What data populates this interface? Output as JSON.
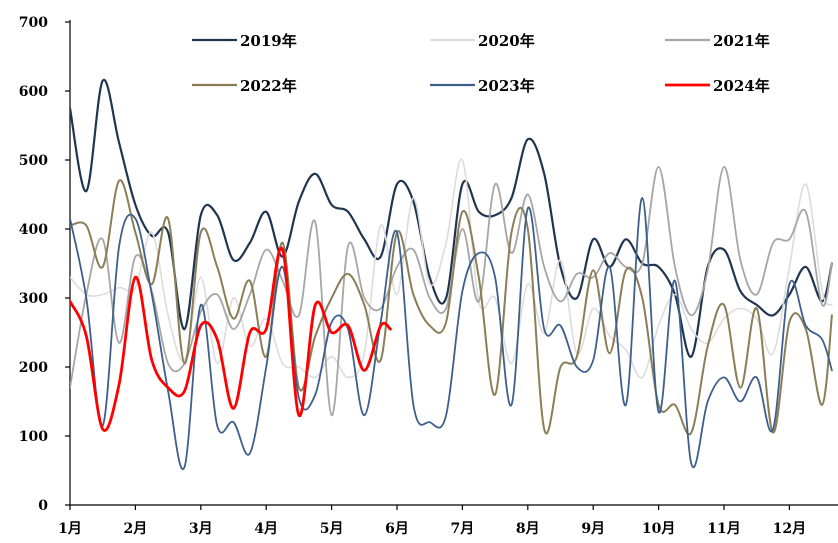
{
  "chart_data": {
    "type": "line",
    "y_ticks": [
      0,
      100,
      200,
      300,
      400,
      500,
      600,
      700
    ],
    "ylim": [
      0,
      700
    ],
    "x_ticks": [
      "1月",
      "2月",
      "3月",
      "4月",
      "5月",
      "6月",
      "7月",
      "8月",
      "9月",
      "10月",
      "11月",
      "12月"
    ],
    "xlim": [
      1,
      12.65
    ],
    "grid": false,
    "legend_position": "top",
    "series": [
      {
        "name": "2019年",
        "color": "#1f3550",
        "width": 2.2,
        "points": [
          [
            1.0,
            575
          ],
          [
            1.25,
            455
          ],
          [
            1.5,
            615
          ],
          [
            1.75,
            525
          ],
          [
            2.0,
            435
          ],
          [
            2.25,
            390
          ],
          [
            2.5,
            395
          ],
          [
            2.75,
            255
          ],
          [
            3.0,
            420
          ],
          [
            3.25,
            420
          ],
          [
            3.5,
            355
          ],
          [
            3.75,
            380
          ],
          [
            4.0,
            425
          ],
          [
            4.25,
            360
          ],
          [
            4.5,
            440
          ],
          [
            4.75,
            480
          ],
          [
            5.0,
            435
          ],
          [
            5.25,
            425
          ],
          [
            5.5,
            385
          ],
          [
            5.75,
            360
          ],
          [
            6.0,
            465
          ],
          [
            6.25,
            440
          ],
          [
            6.5,
            330
          ],
          [
            6.75,
            300
          ],
          [
            7.0,
            465
          ],
          [
            7.25,
            425
          ],
          [
            7.5,
            420
          ],
          [
            7.75,
            445
          ],
          [
            8.0,
            530
          ],
          [
            8.25,
            480
          ],
          [
            8.5,
            345
          ],
          [
            8.75,
            300
          ],
          [
            9.0,
            385
          ],
          [
            9.25,
            345
          ],
          [
            9.5,
            385
          ],
          [
            9.75,
            350
          ],
          [
            10.0,
            345
          ],
          [
            10.25,
            305
          ],
          [
            10.5,
            215
          ],
          [
            10.75,
            345
          ],
          [
            11.0,
            370
          ],
          [
            11.25,
            310
          ],
          [
            11.5,
            290
          ],
          [
            11.75,
            275
          ],
          [
            12.0,
            305
          ],
          [
            12.25,
            345
          ],
          [
            12.5,
            295
          ],
          [
            12.65,
            350
          ]
        ]
      },
      {
        "name": "2020年",
        "color": "#dcdcdc",
        "width": 1.6,
        "points": [
          [
            1.0,
            330
          ],
          [
            1.25,
            305
          ],
          [
            1.5,
            305
          ],
          [
            1.75,
            315
          ],
          [
            2.0,
            315
          ],
          [
            2.25,
            395
          ],
          [
            2.5,
            275
          ],
          [
            2.75,
            210
          ],
          [
            3.0,
            330
          ],
          [
            3.25,
            205
          ],
          [
            3.5,
            300
          ],
          [
            3.75,
            230
          ],
          [
            4.0,
            270
          ],
          [
            4.25,
            205
          ],
          [
            4.5,
            200
          ],
          [
            4.75,
            185
          ],
          [
            5.0,
            215
          ],
          [
            5.25,
            185
          ],
          [
            5.5,
            220
          ],
          [
            5.75,
            405
          ],
          [
            6.0,
            305
          ],
          [
            6.25,
            445
          ],
          [
            6.5,
            320
          ],
          [
            6.75,
            380
          ],
          [
            7.0,
            500
          ],
          [
            7.25,
            295
          ],
          [
            7.5,
            300
          ],
          [
            7.75,
            205
          ],
          [
            8.0,
            320
          ],
          [
            8.25,
            250
          ],
          [
            8.5,
            355
          ],
          [
            8.75,
            220
          ],
          [
            9.0,
            285
          ],
          [
            9.25,
            245
          ],
          [
            9.5,
            225
          ],
          [
            9.75,
            185
          ],
          [
            10.0,
            260
          ],
          [
            10.25,
            305
          ],
          [
            10.5,
            255
          ],
          [
            10.75,
            235
          ],
          [
            11.0,
            270
          ],
          [
            11.25,
            285
          ],
          [
            11.5,
            270
          ],
          [
            11.75,
            220
          ],
          [
            12.0,
            345
          ],
          [
            12.25,
            465
          ],
          [
            12.5,
            310
          ],
          [
            12.65,
            290
          ]
        ]
      },
      {
        "name": "2021年",
        "color": "#a6a6a6",
        "width": 1.8,
        "points": [
          [
            1.0,
            170
          ],
          [
            1.25,
            305
          ],
          [
            1.5,
            385
          ],
          [
            1.75,
            235
          ],
          [
            2.0,
            360
          ],
          [
            2.25,
            310
          ],
          [
            2.5,
            205
          ],
          [
            2.75,
            205
          ],
          [
            3.0,
            280
          ],
          [
            3.25,
            305
          ],
          [
            3.5,
            255
          ],
          [
            3.75,
            305
          ],
          [
            4.0,
            370
          ],
          [
            4.25,
            325
          ],
          [
            4.5,
            275
          ],
          [
            4.75,
            410
          ],
          [
            5.0,
            130
          ],
          [
            5.25,
            375
          ],
          [
            5.5,
            300
          ],
          [
            5.75,
            285
          ],
          [
            6.0,
            345
          ],
          [
            6.25,
            370
          ],
          [
            6.5,
            300
          ],
          [
            6.75,
            285
          ],
          [
            7.0,
            400
          ],
          [
            7.25,
            295
          ],
          [
            7.5,
            465
          ],
          [
            7.75,
            365
          ],
          [
            8.0,
            450
          ],
          [
            8.25,
            345
          ],
          [
            8.5,
            295
          ],
          [
            8.75,
            335
          ],
          [
            9.0,
            330
          ],
          [
            9.25,
            365
          ],
          [
            9.5,
            345
          ],
          [
            9.75,
            350
          ],
          [
            10.0,
            490
          ],
          [
            10.25,
            345
          ],
          [
            10.5,
            275
          ],
          [
            10.75,
            340
          ],
          [
            11.0,
            490
          ],
          [
            11.25,
            355
          ],
          [
            11.5,
            305
          ],
          [
            11.75,
            380
          ],
          [
            12.0,
            385
          ],
          [
            12.25,
            425
          ],
          [
            12.5,
            290
          ],
          [
            12.65,
            350
          ]
        ]
      },
      {
        "name": "2022年",
        "color": "#8b7e57",
        "width": 2.0,
        "points": [
          [
            1.0,
            405
          ],
          [
            1.25,
            405
          ],
          [
            1.5,
            345
          ],
          [
            1.75,
            470
          ],
          [
            2.0,
            395
          ],
          [
            2.25,
            320
          ],
          [
            2.5,
            415
          ],
          [
            2.75,
            205
          ],
          [
            3.0,
            395
          ],
          [
            3.25,
            345
          ],
          [
            3.5,
            270
          ],
          [
            3.75,
            325
          ],
          [
            4.0,
            215
          ],
          [
            4.25,
            380
          ],
          [
            4.5,
            170
          ],
          [
            4.75,
            245
          ],
          [
            5.0,
            300
          ],
          [
            5.25,
            335
          ],
          [
            5.5,
            290
          ],
          [
            5.75,
            210
          ],
          [
            6.0,
            395
          ],
          [
            6.25,
            305
          ],
          [
            6.5,
            260
          ],
          [
            6.75,
            265
          ],
          [
            7.0,
            425
          ],
          [
            7.25,
            330
          ],
          [
            7.5,
            160
          ],
          [
            7.75,
            395
          ],
          [
            8.0,
            400
          ],
          [
            8.25,
            110
          ],
          [
            8.5,
            200
          ],
          [
            8.75,
            215
          ],
          [
            9.0,
            340
          ],
          [
            9.25,
            220
          ],
          [
            9.5,
            340
          ],
          [
            9.75,
            300
          ],
          [
            10.0,
            145
          ],
          [
            10.25,
            145
          ],
          [
            10.5,
            105
          ],
          [
            10.75,
            230
          ],
          [
            11.0,
            290
          ],
          [
            11.25,
            170
          ],
          [
            11.5,
            285
          ],
          [
            11.75,
            105
          ],
          [
            12.0,
            265
          ],
          [
            12.25,
            255
          ],
          [
            12.5,
            145
          ],
          [
            12.65,
            275
          ]
        ]
      },
      {
        "name": "2023年",
        "color": "#3d5f8c",
        "width": 1.8,
        "points": [
          [
            1.0,
            415
          ],
          [
            1.25,
            300
          ],
          [
            1.5,
            115
          ],
          [
            1.75,
            375
          ],
          [
            2.0,
            415
          ],
          [
            2.25,
            305
          ],
          [
            2.5,
            165
          ],
          [
            2.75,
            55
          ],
          [
            3.0,
            290
          ],
          [
            3.25,
            115
          ],
          [
            3.5,
            120
          ],
          [
            3.75,
            75
          ],
          [
            4.0,
            200
          ],
          [
            4.25,
            345
          ],
          [
            4.5,
            155
          ],
          [
            4.75,
            160
          ],
          [
            5.0,
            265
          ],
          [
            5.25,
            255
          ],
          [
            5.5,
            130
          ],
          [
            5.75,
            265
          ],
          [
            6.0,
            395
          ],
          [
            6.25,
            145
          ],
          [
            6.5,
            120
          ],
          [
            6.75,
            130
          ],
          [
            7.0,
            310
          ],
          [
            7.25,
            365
          ],
          [
            7.5,
            330
          ],
          [
            7.75,
            145
          ],
          [
            8.0,
            430
          ],
          [
            8.25,
            255
          ],
          [
            8.5,
            260
          ],
          [
            8.75,
            200
          ],
          [
            9.0,
            210
          ],
          [
            9.25,
            345
          ],
          [
            9.5,
            145
          ],
          [
            9.75,
            445
          ],
          [
            10.0,
            135
          ],
          [
            10.25,
            325
          ],
          [
            10.5,
            60
          ],
          [
            10.75,
            150
          ],
          [
            11.0,
            185
          ],
          [
            11.25,
            150
          ],
          [
            11.5,
            185
          ],
          [
            11.75,
            110
          ],
          [
            12.0,
            320
          ],
          [
            12.25,
            260
          ],
          [
            12.5,
            240
          ],
          [
            12.65,
            195
          ]
        ]
      },
      {
        "name": "2024年",
        "color": "#ff0000",
        "width": 2.8,
        "points": [
          [
            1.0,
            295
          ],
          [
            1.25,
            245
          ],
          [
            1.5,
            110
          ],
          [
            1.75,
            175
          ],
          [
            2.0,
            330
          ],
          [
            2.25,
            210
          ],
          [
            2.5,
            170
          ],
          [
            2.75,
            165
          ],
          [
            3.0,
            260
          ],
          [
            3.25,
            240
          ],
          [
            3.5,
            140
          ],
          [
            3.75,
            250
          ],
          [
            4.0,
            255
          ],
          [
            4.25,
            370
          ],
          [
            4.5,
            130
          ],
          [
            4.75,
            290
          ],
          [
            5.0,
            250
          ],
          [
            5.25,
            260
          ],
          [
            5.5,
            195
          ],
          [
            5.75,
            260
          ],
          [
            5.9,
            255
          ]
        ]
      }
    ]
  }
}
